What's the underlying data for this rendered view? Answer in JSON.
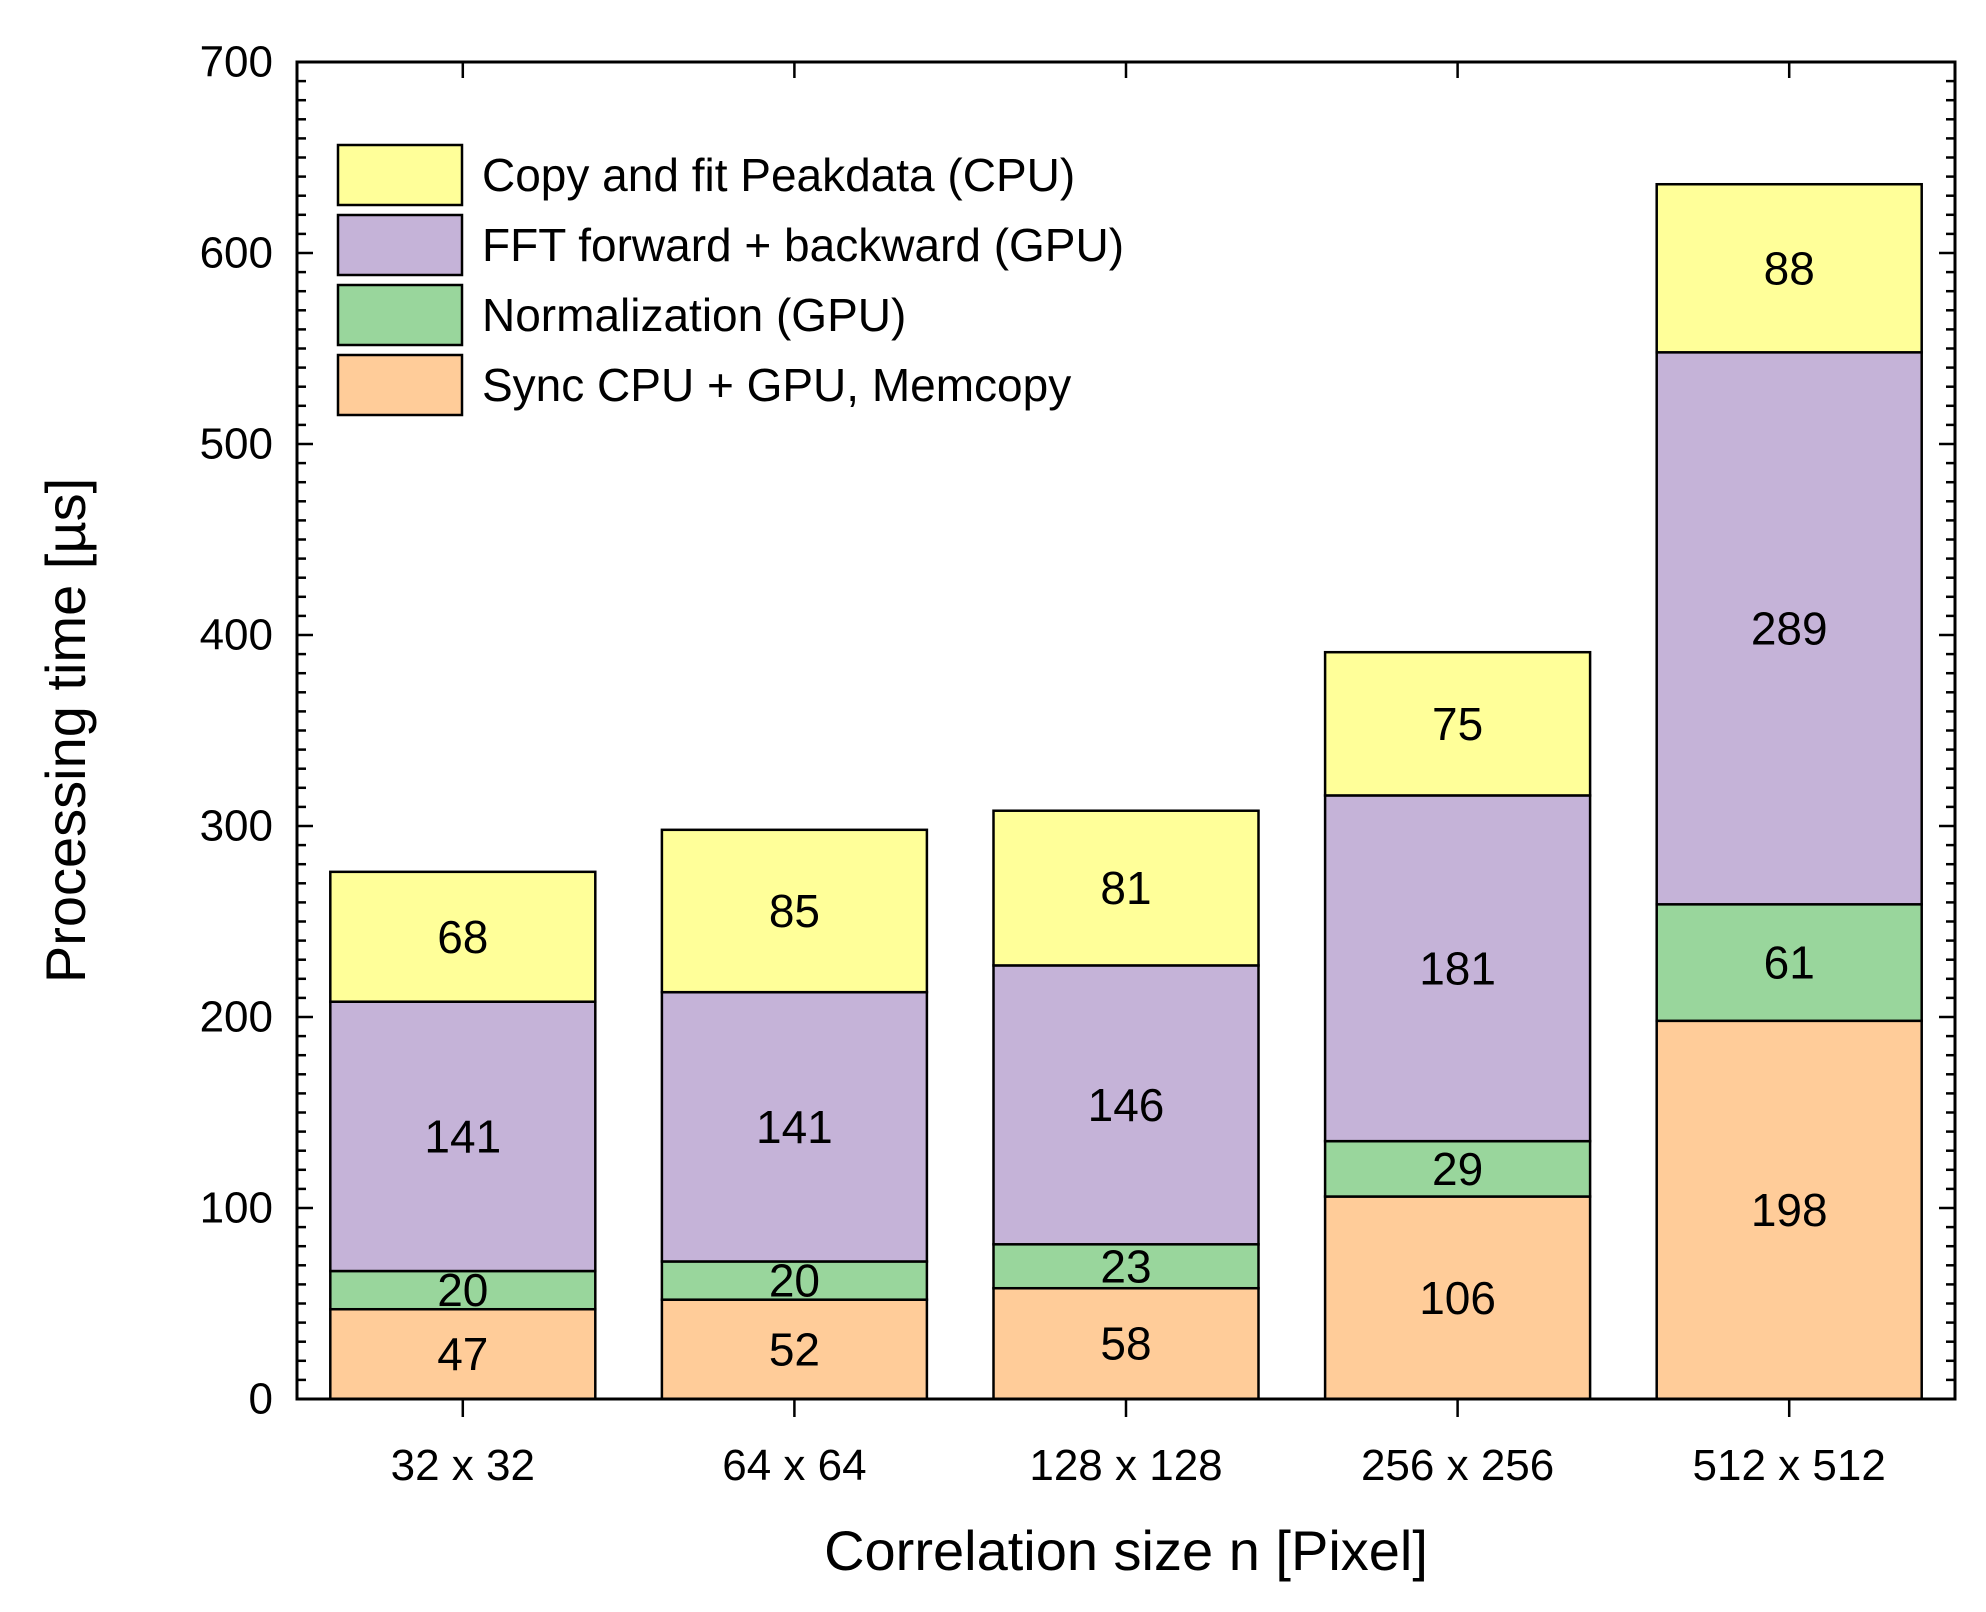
{
  "chart_data": {
    "type": "bar",
    "stacked": true,
    "title": "",
    "xlabel": "Correlation size n [Pixel]",
    "ylabel": "Processing time [µs]",
    "ylim": [
      0,
      700
    ],
    "yticks": [
      "0",
      "100",
      "200",
      "300",
      "400",
      "500",
      "600",
      "700"
    ],
    "categories": [
      "32 x 32",
      "64 x 64",
      "128 x 128",
      "256 x 256",
      "512 x 512"
    ],
    "series": [
      {
        "name": "Sync CPU + GPU, Memcopy",
        "color": "#ffcc99",
        "values": [
          47,
          52,
          58,
          106,
          198
        ]
      },
      {
        "name": "Normalization (GPU)",
        "color": "#99d69c",
        "values": [
          20,
          20,
          23,
          29,
          61
        ]
      },
      {
        "name": "FFT forward + backward (GPU)",
        "color": "#c5b3d8",
        "values": [
          141,
          141,
          146,
          181,
          289
        ]
      },
      {
        "name": "Copy and fit Peakdata (CPU)",
        "color": "#ffff99",
        "values": [
          68,
          85,
          81,
          75,
          88
        ]
      }
    ],
    "legend": {
      "position": "top-left",
      "order": [
        "Copy and fit Peakdata (CPU)",
        "FFT forward + backward (GPU)",
        "Normalization (GPU)",
        "Sync CPU + GPU, Memcopy"
      ]
    },
    "grid": false
  }
}
